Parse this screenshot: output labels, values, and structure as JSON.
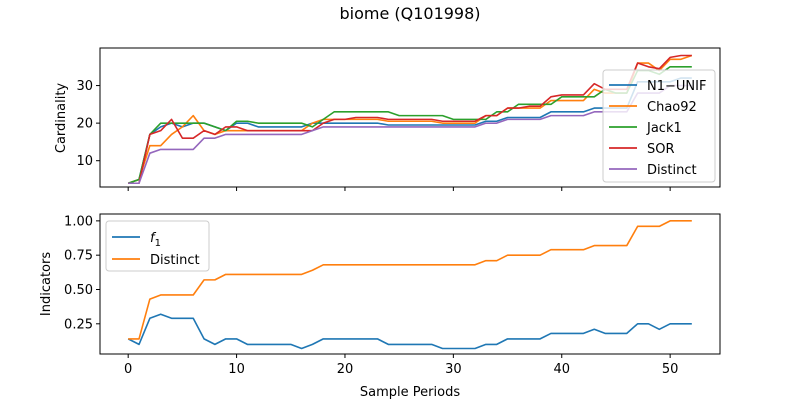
{
  "title": "biome (Q101998)",
  "chart_data": [
    {
      "type": "line",
      "ylabel": "Cardinality",
      "xlabel": "",
      "xlim": [
        -2.6,
        54.6
      ],
      "ylim": [
        3,
        40
      ],
      "yticks": [
        10,
        20,
        30
      ],
      "ytick_labels": [
        "10",
        "20",
        "30"
      ],
      "xticks": [
        0,
        10,
        20,
        30,
        40,
        50
      ],
      "legend_position": "right",
      "series": [
        {
          "name": "N1−UNIF",
          "color": "#1f77b4",
          "values": [
            4,
            5,
            17,
            19,
            20,
            19,
            20,
            20,
            19,
            18,
            20,
            20,
            19,
            19,
            19,
            19,
            19,
            20,
            20,
            20,
            20,
            20,
            20,
            20,
            19.5,
            19.5,
            19.5,
            19.5,
            19.5,
            19.5,
            19.5,
            19.5,
            19.5,
            20.5,
            20.5,
            21.5,
            21.5,
            21.5,
            21.5,
            23,
            23,
            23,
            23,
            24,
            24,
            24,
            24,
            31,
            31,
            31,
            31,
            32,
            32
          ]
        },
        {
          "name": "Chao92",
          "color": "#ff7f0e",
          "values": [
            4,
            5,
            14,
            14,
            17,
            19,
            22,
            18,
            17,
            18,
            18,
            18,
            18,
            18,
            18,
            18,
            18,
            20,
            21,
            21,
            21,
            21,
            21,
            21,
            20.5,
            20.5,
            20.5,
            20.5,
            20.5,
            20,
            20,
            20,
            20,
            22,
            22,
            24,
            24,
            24,
            24,
            26,
            26,
            26,
            26,
            29,
            28,
            28,
            28,
            36,
            36,
            34,
            37,
            37,
            38
          ]
        },
        {
          "name": "Jack1",
          "color": "#2ca02c",
          "values": [
            4,
            5,
            17,
            20,
            20,
            20,
            20,
            20,
            19,
            18,
            20.5,
            20.5,
            20,
            20,
            20,
            20,
            20,
            19,
            21,
            23,
            23,
            23,
            23,
            23,
            23,
            22,
            22,
            22,
            22,
            22,
            21,
            21,
            21,
            21,
            23,
            23,
            25,
            25,
            25,
            25,
            27,
            27,
            27,
            27,
            29,
            28,
            28,
            34,
            34,
            33,
            35,
            35,
            35
          ]
        },
        {
          "name": "SOR",
          "color": "#d62728",
          "values": [
            4,
            4,
            17,
            18,
            21,
            16,
            16,
            18,
            17,
            19,
            19,
            18,
            18,
            18,
            18,
            18,
            18,
            18,
            20,
            21,
            21,
            21.5,
            21.5,
            21.5,
            21,
            21,
            21,
            21,
            21,
            20.5,
            20.5,
            20.5,
            20.5,
            22,
            22,
            24,
            24,
            24.5,
            24.5,
            27,
            27.5,
            27.5,
            27.5,
            30.5,
            29,
            29,
            29,
            36,
            35,
            34.5,
            37.5,
            38,
            38
          ]
        },
        {
          "name": "Distinct",
          "color": "#9467bd",
          "values": [
            4,
            4,
            12,
            13,
            13,
            13,
            13,
            16,
            16,
            17,
            17,
            17,
            17,
            17,
            17,
            17,
            17,
            18,
            19,
            19,
            19,
            19,
            19,
            19,
            19,
            19,
            19,
            19,
            19,
            19,
            19,
            19,
            19,
            20,
            20,
            21,
            21,
            21,
            21,
            22,
            22,
            22,
            22,
            23,
            23,
            23,
            23,
            28,
            28,
            28,
            30,
            30,
            30
          ]
        }
      ]
    },
    {
      "type": "line",
      "ylabel": "Indicators",
      "xlabel": "Sample Periods",
      "xlim": [
        -2.6,
        54.6
      ],
      "ylim": [
        0.03,
        1.05
      ],
      "yticks": [
        0.25,
        0.5,
        0.75,
        1.0
      ],
      "ytick_labels": [
        "0.25",
        "0.50",
        "0.75",
        "1.00"
      ],
      "xticks": [
        0,
        10,
        20,
        30,
        40,
        50
      ],
      "xtick_labels": [
        "0",
        "10",
        "20",
        "30",
        "40",
        "50"
      ],
      "legend_position": "top-left",
      "series": [
        {
          "name": "f",
          "name_subscript": "1",
          "color": "#1f77b4",
          "values": [
            0.14,
            0.1,
            0.29,
            0.32,
            0.29,
            0.29,
            0.29,
            0.14,
            0.1,
            0.14,
            0.14,
            0.1,
            0.1,
            0.1,
            0.1,
            0.1,
            0.07,
            0.1,
            0.14,
            0.14,
            0.14,
            0.14,
            0.14,
            0.14,
            0.1,
            0.1,
            0.1,
            0.1,
            0.1,
            0.07,
            0.07,
            0.07,
            0.07,
            0.1,
            0.1,
            0.14,
            0.14,
            0.14,
            0.14,
            0.18,
            0.18,
            0.18,
            0.18,
            0.21,
            0.18,
            0.18,
            0.18,
            0.25,
            0.25,
            0.21,
            0.25,
            0.25,
            0.25
          ]
        },
        {
          "name": "Distinct",
          "color": "#ff7f0e",
          "values": [
            0.14,
            0.14,
            0.43,
            0.46,
            0.46,
            0.46,
            0.46,
            0.57,
            0.57,
            0.61,
            0.61,
            0.61,
            0.61,
            0.61,
            0.61,
            0.61,
            0.61,
            0.64,
            0.68,
            0.68,
            0.68,
            0.68,
            0.68,
            0.68,
            0.68,
            0.68,
            0.68,
            0.68,
            0.68,
            0.68,
            0.68,
            0.68,
            0.68,
            0.71,
            0.71,
            0.75,
            0.75,
            0.75,
            0.75,
            0.79,
            0.79,
            0.79,
            0.79,
            0.82,
            0.82,
            0.82,
            0.82,
            0.96,
            0.96,
            0.96,
            1.0,
            1.0,
            1.0
          ]
        }
      ]
    }
  ]
}
